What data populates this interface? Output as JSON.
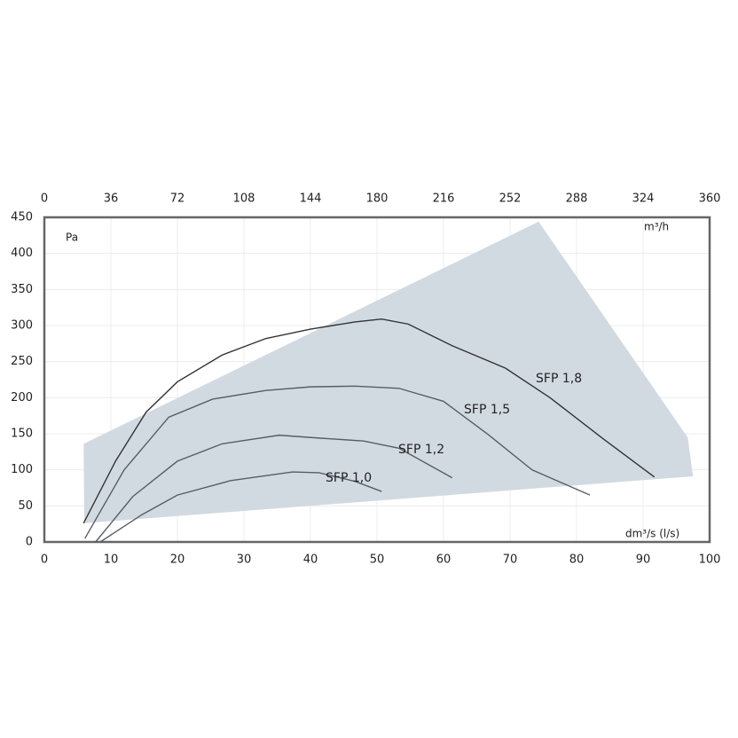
{
  "chart_data": {
    "type": "line",
    "xlim": [
      0,
      100
    ],
    "xticks": [
      0,
      10,
      20,
      30,
      40,
      50,
      60,
      70,
      80,
      90,
      100
    ],
    "x2lim": [
      0,
      360
    ],
    "x2ticks": [
      0,
      36,
      72,
      108,
      144,
      180,
      216,
      252,
      288,
      324,
      360
    ],
    "ylim": [
      0,
      450
    ],
    "yticks": [
      0,
      50,
      100,
      150,
      200,
      250,
      300,
      350,
      400,
      450
    ],
    "y_unit": "Pa",
    "x_unit": "dm³/s (l/s)",
    "x2_unit": "m³/h",
    "grid": true,
    "area": {
      "color": "#d2dae1",
      "x": [
        5.9,
        74.3,
        96.7,
        97.5,
        6
      ],
      "y": [
        136,
        444,
        145,
        91,
        26
      ]
    },
    "series": [
      {
        "name": "SFP 1,8",
        "color": "#333333",
        "x": [
          5.9,
          10.7,
          15.3,
          20,
          26.7,
          33.3,
          40,
          46.7,
          50.7,
          54.7,
          61.3,
          69.3,
          76,
          84,
          91.7
        ],
        "values": [
          26,
          112,
          180,
          222,
          259,
          282,
          295,
          305,
          309,
          302,
          272,
          241,
          200,
          143,
          90
        ]
      },
      {
        "name": "SFP 1,5",
        "color": "#555e66",
        "x": [
          6.1,
          12,
          18.7,
          25.3,
          33.3,
          40,
          46.7,
          53.3,
          60,
          66.7,
          73.3,
          82
        ],
        "values": [
          5,
          100,
          173,
          198,
          210,
          215,
          216,
          213,
          195,
          149,
          100,
          65
        ]
      },
      {
        "name": "SFP 1,2",
        "color": "#555e66",
        "x": [
          7.7,
          13.3,
          20,
          26.7,
          35.3,
          41.3,
          48,
          53.3,
          61.3
        ],
        "values": [
          0,
          63,
          112,
          136,
          148,
          144,
          140,
          130,
          89
        ]
      },
      {
        "name": "SFP 1,0",
        "color": "#555e66",
        "x": [
          8.4,
          14.7,
          20,
          28,
          37.3,
          41.3,
          46.7,
          50.7
        ],
        "values": [
          0,
          38,
          65,
          85,
          97,
          96,
          84,
          70
        ]
      }
    ]
  }
}
